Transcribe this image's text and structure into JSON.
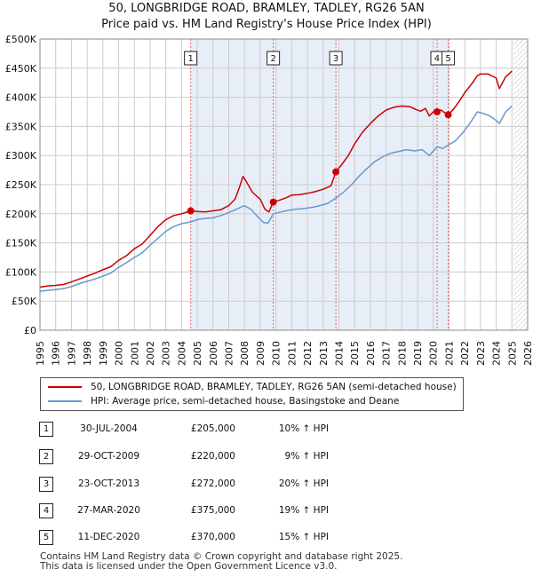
{
  "title_line1": "50, LONGBRIDGE ROAD, BRAMLEY, TADLEY, RG26 5AN",
  "title_line2": "Price paid vs. HM Land Registry's House Price Index (HPI)",
  "colors": {
    "red": "#cc0000",
    "blue": "#6699cc",
    "shade": "#e8eef8",
    "grid": "#cccccc"
  },
  "chart_data": {
    "type": "line",
    "xlim": [
      1995,
      2026
    ],
    "ylim": [
      0,
      500000
    ],
    "x_ticks": [
      "1995",
      "1996",
      "1997",
      "1998",
      "1999",
      "2000",
      "2001",
      "2002",
      "2003",
      "2004",
      "2005",
      "2006",
      "2007",
      "2008",
      "2009",
      "2010",
      "2011",
      "2012",
      "2013",
      "2014",
      "2015",
      "2016",
      "2017",
      "2018",
      "2019",
      "2020",
      "2021",
      "2022",
      "2023",
      "2024",
      "2025",
      "2026"
    ],
    "y_ticks": [
      {
        "value": 0,
        "label": "£0"
      },
      {
        "value": 50000,
        "label": "£50K"
      },
      {
        "value": 100000,
        "label": "£100K"
      },
      {
        "value": 150000,
        "label": "£150K"
      },
      {
        "value": 200000,
        "label": "£200K"
      },
      {
        "value": 250000,
        "label": "£250K"
      },
      {
        "value": 300000,
        "label": "£300K"
      },
      {
        "value": 350000,
        "label": "£350K"
      },
      {
        "value": 400000,
        "label": "£400K"
      },
      {
        "value": 450000,
        "label": "£450K"
      },
      {
        "value": 500000,
        "label": "£500K"
      }
    ],
    "data_end": 2025.1,
    "series": [
      {
        "name": "50, LONGBRIDGE ROAD, BRAMLEY, TADLEY, RG26 5AN (semi-detached house)",
        "color": "#cc0000",
        "points": [
          [
            1995.0,
            74000
          ],
          [
            1995.5,
            76000
          ],
          [
            1996.0,
            77000
          ],
          [
            1996.5,
            78500
          ],
          [
            1997.0,
            83000
          ],
          [
            1997.5,
            88000
          ],
          [
            1998.0,
            93000
          ],
          [
            1998.5,
            98000
          ],
          [
            1999.0,
            104000
          ],
          [
            1999.5,
            109000
          ],
          [
            2000.0,
            120000
          ],
          [
            2000.5,
            128000
          ],
          [
            2001.0,
            140000
          ],
          [
            2001.5,
            148000
          ],
          [
            2002.0,
            163000
          ],
          [
            2002.5,
            178000
          ],
          [
            2003.0,
            190000
          ],
          [
            2003.5,
            197000
          ],
          [
            2004.0,
            200000
          ],
          [
            2004.58,
            205000
          ],
          [
            2005.0,
            204000
          ],
          [
            2005.5,
            203000
          ],
          [
            2006.0,
            205000
          ],
          [
            2006.5,
            207000
          ],
          [
            2007.0,
            214000
          ],
          [
            2007.4,
            225000
          ],
          [
            2007.7,
            247000
          ],
          [
            2007.9,
            264000
          ],
          [
            2008.1,
            256000
          ],
          [
            2008.5,
            237000
          ],
          [
            2009.0,
            225000
          ],
          [
            2009.3,
            208000
          ],
          [
            2009.55,
            203000
          ],
          [
            2009.83,
            220000
          ],
          [
            2010.2,
            223000
          ],
          [
            2010.7,
            228000
          ],
          [
            2011.0,
            232000
          ],
          [
            2011.5,
            233000
          ],
          [
            2012.0,
            235000
          ],
          [
            2012.5,
            238000
          ],
          [
            2013.0,
            242000
          ],
          [
            2013.5,
            248000
          ],
          [
            2013.81,
            272000
          ],
          [
            2014.2,
            285000
          ],
          [
            2014.6,
            300000
          ],
          [
            2015.0,
            320000
          ],
          [
            2015.5,
            340000
          ],
          [
            2016.0,
            355000
          ],
          [
            2016.5,
            368000
          ],
          [
            2017.0,
            378000
          ],
          [
            2017.5,
            383000
          ],
          [
            2018.0,
            385000
          ],
          [
            2018.5,
            384000
          ],
          [
            2018.9,
            379000
          ],
          [
            2019.2,
            376000
          ],
          [
            2019.5,
            381000
          ],
          [
            2019.75,
            368000
          ],
          [
            2020.0,
            375000
          ],
          [
            2020.24,
            375000
          ],
          [
            2020.5,
            378000
          ],
          [
            2020.75,
            373000
          ],
          [
            2020.95,
            370000
          ],
          [
            2021.3,
            380000
          ],
          [
            2021.7,
            395000
          ],
          [
            2022.0,
            408000
          ],
          [
            2022.5,
            425000
          ],
          [
            2022.8,
            437000
          ],
          [
            2023.0,
            440000
          ],
          [
            2023.5,
            440000
          ],
          [
            2024.0,
            433000
          ],
          [
            2024.2,
            415000
          ],
          [
            2024.6,
            435000
          ],
          [
            2025.0,
            445000
          ]
        ]
      },
      {
        "name": "HPI: Average price, semi-detached house, Basingstoke and Deane",
        "color": "#6699cc",
        "points": [
          [
            1995.0,
            67000
          ],
          [
            1995.5,
            68500
          ],
          [
            1996.0,
            70000
          ],
          [
            1996.5,
            71500
          ],
          [
            1997.0,
            75000
          ],
          [
            1997.5,
            80000
          ],
          [
            1998.0,
            84000
          ],
          [
            1998.5,
            88000
          ],
          [
            1999.0,
            93000
          ],
          [
            1999.5,
            98000
          ],
          [
            2000.0,
            108000
          ],
          [
            2000.5,
            116000
          ],
          [
            2001.0,
            125000
          ],
          [
            2001.5,
            133000
          ],
          [
            2002.0,
            146000
          ],
          [
            2002.5,
            158000
          ],
          [
            2003.0,
            170000
          ],
          [
            2003.5,
            178000
          ],
          [
            2004.0,
            183000
          ],
          [
            2004.58,
            186000
          ],
          [
            2005.0,
            190000
          ],
          [
            2005.5,
            192000
          ],
          [
            2006.0,
            193000
          ],
          [
            2006.5,
            197000
          ],
          [
            2007.0,
            202000
          ],
          [
            2007.5,
            208000
          ],
          [
            2008.0,
            214000
          ],
          [
            2008.4,
            208000
          ],
          [
            2008.8,
            196000
          ],
          [
            2009.2,
            185000
          ],
          [
            2009.5,
            184000
          ],
          [
            2009.83,
            200000
          ],
          [
            2010.3,
            203000
          ],
          [
            2010.8,
            206000
          ],
          [
            2011.3,
            208000
          ],
          [
            2011.8,
            209000
          ],
          [
            2012.3,
            211000
          ],
          [
            2012.8,
            214000
          ],
          [
            2013.3,
            218000
          ],
          [
            2013.81,
            227000
          ],
          [
            2014.3,
            237000
          ],
          [
            2014.8,
            250000
          ],
          [
            2015.3,
            265000
          ],
          [
            2015.8,
            278000
          ],
          [
            2016.3,
            290000
          ],
          [
            2016.8,
            298000
          ],
          [
            2017.3,
            304000
          ],
          [
            2017.8,
            307000
          ],
          [
            2018.3,
            310000
          ],
          [
            2018.8,
            308000
          ],
          [
            2019.3,
            310000
          ],
          [
            2019.75,
            300000
          ],
          [
            2020.24,
            315000
          ],
          [
            2020.6,
            312000
          ],
          [
            2020.95,
            318000
          ],
          [
            2021.4,
            325000
          ],
          [
            2021.9,
            340000
          ],
          [
            2022.4,
            358000
          ],
          [
            2022.8,
            375000
          ],
          [
            2023.2,
            372000
          ],
          [
            2023.6,
            368000
          ],
          [
            2024.0,
            360000
          ],
          [
            2024.2,
            355000
          ],
          [
            2024.6,
            375000
          ],
          [
            2025.0,
            385000
          ]
        ]
      }
    ],
    "sales": [
      {
        "num": "1",
        "x": 2004.58,
        "price": 205000
      },
      {
        "num": "2",
        "x": 2009.83,
        "price": 220000
      },
      {
        "num": "3",
        "x": 2013.81,
        "price": 272000
      },
      {
        "num": "4",
        "x": 2020.24,
        "price": 375000
      },
      {
        "num": "5",
        "x": 2020.95,
        "price": 370000
      }
    ]
  },
  "legend": {
    "red_label": "50, LONGBRIDGE ROAD, BRAMLEY, TADLEY, RG26 5AN (semi-detached house)",
    "blue_label": "HPI: Average price, semi-detached house, Basingstoke and Deane"
  },
  "transactions": [
    {
      "num": "1",
      "date": "30-JUL-2004",
      "price": "£205,000",
      "hpi": "10% ↑ HPI"
    },
    {
      "num": "2",
      "date": "29-OCT-2009",
      "price": "£220,000",
      "hpi": "9% ↑ HPI"
    },
    {
      "num": "3",
      "date": "23-OCT-2013",
      "price": "£272,000",
      "hpi": "20% ↑ HPI"
    },
    {
      "num": "4",
      "date": "27-MAR-2020",
      "price": "£375,000",
      "hpi": "19% ↑ HPI"
    },
    {
      "num": "5",
      "date": "11-DEC-2020",
      "price": "£370,000",
      "hpi": "15% ↑ HPI"
    }
  ],
  "footer_line1": "Contains HM Land Registry data © Crown copyright and database right 2025.",
  "footer_line2": "This data is licensed under the Open Government Licence v3.0."
}
